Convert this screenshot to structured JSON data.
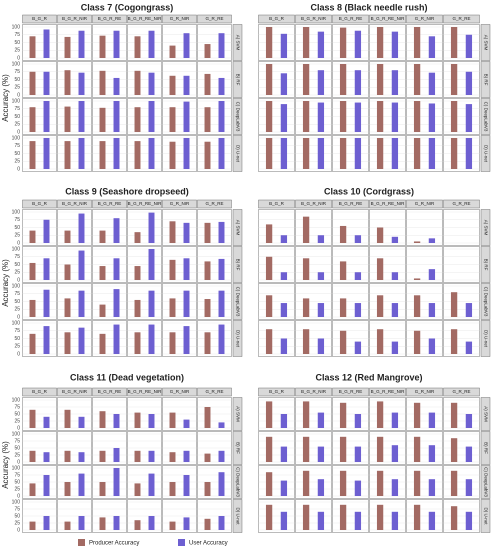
{
  "chart_data": [
    {
      "type": "bar",
      "title": "Class 7 (Cogongrass)",
      "y_label": "Accuracy (%)",
      "columns": [
        "B_G_R",
        "B_G_R_NIR",
        "B_G_R_RE",
        "B_G_R_RE_NIR",
        "G_R_NIR",
        "G_R_RE"
      ],
      "rows": [
        "A) SVM",
        "B) RF",
        "C) DeepLabV3",
        "D) U-net"
      ],
      "ylim": [
        0,
        100
      ],
      "yticks": [
        0,
        25,
        50,
        75,
        100
      ],
      "grid": true,
      "series": [
        {
          "name": "Producer Accuracy",
          "color": "#a36a63",
          "values": [
            [
              70,
              68,
              72,
              70,
              40,
              45
            ],
            [
              75,
              80,
              78,
              78,
              62,
              68
            ],
            [
              80,
              82,
              78,
              80,
              80,
              80
            ],
            [
              90,
              90,
              90,
              90,
              88,
              88
            ]
          ]
        },
        {
          "name": "User Accuracy",
          "color": "#6d5fd1",
          "values": [
            [
              92,
              88,
              88,
              88,
              80,
              80
            ],
            [
              75,
              72,
              55,
              72,
              62,
              55
            ],
            [
              100,
              100,
              100,
              100,
              98,
              100
            ],
            [
              100,
              100,
              100,
              100,
              100,
              100
            ]
          ]
        }
      ]
    },
    {
      "type": "bar",
      "title": "Class 8 (Black needle rush)",
      "columns": [
        "B_G_R",
        "B_G_R_NIR",
        "B_G_R_RE",
        "B_G_R_RE_NIR",
        "G_R_NIR",
        "G_R_RE"
      ],
      "rows": [
        "A) SVM",
        "B) RF",
        "C) DeepLabV3",
        "D) U-net"
      ],
      "ylim": [
        0,
        100
      ],
      "yticks": [
        0,
        25,
        50,
        75,
        100
      ],
      "grid": true,
      "series": [
        {
          "name": "Producer Accuracy",
          "color": "#a36a63",
          "values": [
            [
              100,
              100,
              98,
              100,
              100,
              100
            ],
            [
              100,
              100,
              100,
              100,
              100,
              100
            ],
            [
              100,
              100,
              100,
              100,
              100,
              100
            ],
            [
              100,
              100,
              100,
              100,
              100,
              100
            ]
          ]
        },
        {
          "name": "User Accuracy",
          "color": "#6d5fd1",
          "values": [
            [
              78,
              85,
              88,
              85,
              70,
              75
            ],
            [
              70,
              80,
              80,
              80,
              72,
              75
            ],
            [
              90,
              95,
              95,
              95,
              92,
              90
            ],
            [
              100,
              100,
              100,
              100,
              100,
              100
            ]
          ]
        }
      ]
    },
    {
      "type": "bar",
      "title": "Class 9 (Seashore dropseed)",
      "y_label": "Accuracy (%)",
      "columns": [
        "B_G_R",
        "B_G_R_NIR",
        "B_G_R_RE",
        "B_G_R_RE_NIR",
        "G_R_NIR",
        "G_R_RE"
      ],
      "rows": [
        "A) SVM",
        "B) RF",
        "C) DeepLabV3",
        "D) U-net"
      ],
      "ylim": [
        0,
        100
      ],
      "yticks": [
        0,
        25,
        50,
        75,
        100
      ],
      "grid": true,
      "series": [
        {
          "name": "Producer Accuracy",
          "color": "#a36a63",
          "values": [
            [
              40,
              40,
              40,
              35,
              70,
              65
            ],
            [
              55,
              50,
              45,
              45,
              65,
              60
            ],
            [
              55,
              60,
              40,
              55,
              60,
              58
            ],
            [
              65,
              70,
              65,
              70,
              70,
              70
            ]
          ]
        },
        {
          "name": "User Accuracy",
          "color": "#6d5fd1",
          "values": [
            [
              75,
              95,
              80,
              98,
              65,
              68
            ],
            [
              70,
              95,
              70,
              100,
              70,
              68
            ],
            [
              88,
              85,
              90,
              85,
              85,
              85
            ],
            [
              90,
              85,
              95,
              95,
              90,
              95
            ]
          ]
        }
      ]
    },
    {
      "type": "bar",
      "title": "Class 10 (Cordgrass)",
      "columns": [
        "B_G_R",
        "B_G_R_NIR",
        "B_G_R_RE",
        "B_G_R_RE_NIR",
        "G_R_NIR",
        "G_R_RE"
      ],
      "rows": [
        "A) SVM",
        "B) RF",
        "C) DeepLabV3",
        "D) U-net"
      ],
      "ylim": [
        0,
        100
      ],
      "yticks": [
        0,
        25,
        50,
        75,
        100
      ],
      "grid": true,
      "series": [
        {
          "name": "Producer Accuracy",
          "color": "#a36a63",
          "values": [
            [
              60,
              85,
              55,
              50,
              5,
              0
            ],
            [
              75,
              70,
              60,
              70,
              5,
              0
            ],
            [
              70,
              60,
              60,
              70,
              70,
              80
            ],
            [
              80,
              80,
              75,
              80,
              75,
              80
            ]
          ]
        },
        {
          "name": "User Accuracy",
          "color": "#6d5fd1",
          "values": [
            [
              25,
              25,
              25,
              20,
              15,
              0
            ],
            [
              25,
              25,
              25,
              25,
              35,
              0
            ],
            [
              45,
              45,
              45,
              45,
              45,
              45
            ],
            [
              50,
              50,
              40,
              40,
              50,
              40
            ]
          ]
        }
      ]
    },
    {
      "type": "bar",
      "title": "Class 11 (Dead vegetation)",
      "y_label": "Accuracy (%)",
      "columns": [
        "B_G_R",
        "B_G_R_NIR",
        "B_G_R_RE",
        "B_G_R_RE_NIR",
        "G_R_NIR",
        "G_R_RE"
      ],
      "rows": [
        "A) SVM",
        "B) RF",
        "C) DeepLabV3",
        "D) U-net"
      ],
      "ylim": [
        0,
        100
      ],
      "yticks": [
        0,
        25,
        50,
        75,
        100
      ],
      "grid": true,
      "series": [
        {
          "name": "Producer Accuracy",
          "color": "#a36a63",
          "values": [
            [
              65,
              65,
              60,
              55,
              55,
              75
            ],
            [
              40,
              40,
              40,
              40,
              35,
              30
            ],
            [
              45,
              50,
              50,
              45,
              50,
              50
            ],
            [
              30,
              30,
              45,
              35,
              30,
              40
            ]
          ]
        },
        {
          "name": "User Accuracy",
          "color": "#6d5fd1",
          "values": [
            [
              40,
              40,
              50,
              50,
              30,
              20
            ],
            [
              35,
              35,
              50,
              40,
              40,
              40
            ],
            [
              75,
              80,
              100,
              80,
              75,
              85
            ],
            [
              50,
              50,
              50,
              50,
              45,
              50
            ]
          ]
        }
      ]
    },
    {
      "type": "bar",
      "title": "Class 12 (Red Mangrove)",
      "columns": [
        "B_G_R",
        "B_G_R_NIR",
        "B_G_R_RE",
        "B_G_R_RE_NIR",
        "G_R_NIR",
        "G_R_RE"
      ],
      "rows": [
        "A) SVM",
        "B) RF",
        "C) DeepLabV3",
        "D) U-net"
      ],
      "ylim": [
        0,
        100
      ],
      "yticks": [
        0,
        25,
        50,
        75,
        100
      ],
      "grid": true,
      "series": [
        {
          "name": "Producer Accuracy",
          "color": "#a36a63",
          "values": [
            [
              95,
              95,
              90,
              95,
              90,
              90
            ],
            [
              90,
              90,
              90,
              90,
              90,
              85
            ],
            [
              85,
              90,
              90,
              90,
              90,
              90
            ],
            [
              90,
              90,
              90,
              90,
              90,
              85
            ]
          ]
        },
        {
          "name": "User Accuracy",
          "color": "#6d5fd1",
          "values": [
            [
              50,
              55,
              50,
              55,
              55,
              50
            ],
            [
              55,
              55,
              55,
              60,
              60,
              55
            ],
            [
              55,
              60,
              55,
              60,
              60,
              60
            ],
            [
              65,
              65,
              65,
              65,
              65,
              65
            ]
          ]
        }
      ]
    }
  ]
}
